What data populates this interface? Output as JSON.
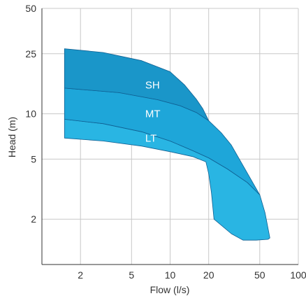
{
  "chart_data": {
    "type": "area",
    "xlabel": "Flow (l/s)",
    "ylabel": "Head (m)",
    "x_scale": "log",
    "y_scale": "log",
    "xlim": [
      1,
      100
    ],
    "ylim": [
      1,
      50
    ],
    "x_ticks": [
      2,
      5,
      10,
      20,
      50,
      100
    ],
    "y_ticks": [
      2,
      5,
      10,
      25,
      50
    ],
    "grid": true,
    "colors": {
      "SH": "#1a96c9",
      "MT": "#1ea6d9",
      "LT": "#29b5e3",
      "edge": "#0f5f92"
    },
    "series": [
      {
        "name": "LT",
        "color": "#29b5e3",
        "upper": [
          [
            1.5,
            9.2
          ],
          [
            3,
            8.6
          ],
          [
            6,
            7.6
          ],
          [
            10,
            6.6
          ],
          [
            15,
            5.7
          ],
          [
            20,
            5.1
          ],
          [
            28,
            4.3
          ],
          [
            40,
            3.5
          ],
          [
            50,
            2.9
          ],
          [
            55,
            2.2
          ],
          [
            60,
            1.5
          ]
        ],
        "lower": [
          [
            1.5,
            6.9
          ],
          [
            3,
            6.6
          ],
          [
            6,
            6.1
          ],
          [
            10,
            5.6
          ],
          [
            15,
            5.2
          ],
          [
            19,
            4.8
          ],
          [
            20,
            4.0
          ],
          [
            21,
            3.0
          ],
          [
            22,
            2.0
          ],
          [
            30,
            1.6
          ],
          [
            37,
            1.45
          ],
          [
            47,
            1.45
          ],
          [
            58,
            1.47
          ]
        ]
      },
      {
        "name": "MT",
        "color": "#1ea6d9",
        "upper": [
          [
            1.5,
            14.8
          ],
          [
            4,
            13.8
          ],
          [
            8,
            12.4
          ],
          [
            12,
            11.3
          ],
          [
            16,
            10.2
          ],
          [
            20,
            9.0
          ],
          [
            25,
            7.5
          ],
          [
            30,
            6.2
          ]
        ],
        "lower": [
          [
            1.5,
            9.2
          ],
          [
            3,
            8.6
          ],
          [
            6,
            7.6
          ],
          [
            10,
            6.6
          ],
          [
            15,
            5.7
          ],
          [
            20,
            5.1
          ],
          [
            28,
            4.3
          ],
          [
            40,
            3.5
          ],
          [
            50,
            2.9
          ]
        ]
      },
      {
        "name": "SH",
        "color": "#1a96c9",
        "upper": [
          [
            1.5,
            27.0
          ],
          [
            3,
            25.5
          ],
          [
            6,
            22.5
          ],
          [
            10,
            19.0
          ],
          [
            13,
            15.5
          ],
          [
            16,
            12.5
          ],
          [
            18,
            10.8
          ],
          [
            20,
            9.0
          ]
        ],
        "lower": [
          [
            1.5,
            14.8
          ],
          [
            4,
            13.8
          ],
          [
            8,
            12.4
          ],
          [
            12,
            11.3
          ],
          [
            16,
            10.2
          ],
          [
            20,
            9.0
          ]
        ]
      }
    ],
    "labels": [
      {
        "text": "SH",
        "x": 6.4,
        "y": 15.5
      },
      {
        "text": "MT",
        "x": 6.4,
        "y": 10.0
      },
      {
        "text": "LT",
        "x": 6.4,
        "y": 6.9
      }
    ]
  }
}
